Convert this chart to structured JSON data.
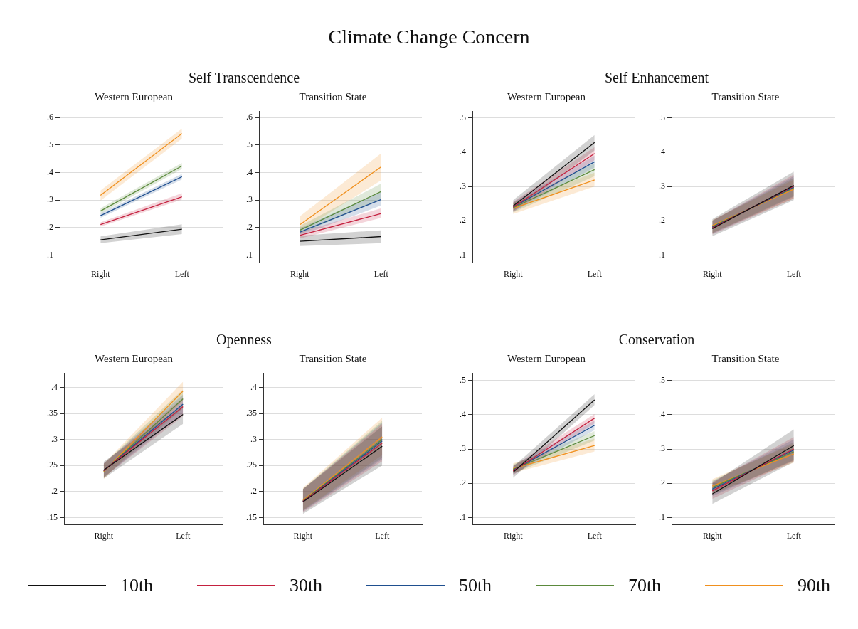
{
  "chart_data": [
    {
      "type": "line",
      "title": "Self Transcendence",
      "subtitle": "Western European",
      "annotations": [
        "Climate Change Concern"
      ],
      "legend": "bottom",
      "grid": "y",
      "categories": [
        "Right",
        "Left"
      ],
      "ylim": [
        0.071,
        0.624
      ],
      "yticks": [
        {
          "value": 0.1,
          "label": ".1"
        },
        {
          "value": 0.2,
          "label": ".2"
        },
        {
          "value": 0.3,
          "label": ".3"
        },
        {
          "value": 0.4,
          "label": ".4"
        },
        {
          "value": 0.5,
          "label": ".5"
        },
        {
          "value": 0.6,
          "label": ".6"
        }
      ],
      "series": [
        {
          "name": "10th",
          "color": "#111111",
          "values": [
            0.155,
            0.194
          ],
          "lower": [
            0.143,
            0.176
          ],
          "upper": [
            0.168,
            0.212
          ]
        },
        {
          "name": "30th",
          "color": "#c4213f",
          "values": [
            0.211,
            0.312
          ],
          "lower": [
            0.203,
            0.302
          ],
          "upper": [
            0.219,
            0.325
          ]
        },
        {
          "name": "50th",
          "color": "#1f4f8f",
          "values": [
            0.243,
            0.385
          ],
          "lower": [
            0.235,
            0.375
          ],
          "upper": [
            0.251,
            0.395
          ]
        },
        {
          "name": "70th",
          "color": "#5b8a3c",
          "values": [
            0.26,
            0.424
          ],
          "lower": [
            0.25,
            0.413
          ],
          "upper": [
            0.27,
            0.435
          ]
        },
        {
          "name": "90th",
          "color": "#f0901e",
          "values": [
            0.317,
            0.542
          ],
          "lower": [
            0.298,
            0.524
          ],
          "upper": [
            0.335,
            0.56
          ]
        }
      ]
    },
    {
      "type": "line",
      "subtitle": "Transition State",
      "grid": "y",
      "categories": [
        "Right",
        "Left"
      ],
      "ylim": [
        0.071,
        0.624
      ],
      "yticks": [
        {
          "value": 0.1,
          "label": ".1"
        },
        {
          "value": 0.2,
          "label": ".2"
        },
        {
          "value": 0.3,
          "label": ".3"
        },
        {
          "value": 0.4,
          "label": ".4"
        },
        {
          "value": 0.5,
          "label": ".5"
        },
        {
          "value": 0.6,
          "label": ".6"
        }
      ],
      "series": [
        {
          "color": "#111111",
          "values": [
            0.15,
            0.167
          ],
          "lower": [
            0.133,
            0.143
          ],
          "upper": [
            0.17,
            0.19
          ]
        },
        {
          "color": "#c4213f",
          "values": [
            0.171,
            0.251
          ],
          "lower": [
            0.16,
            0.235
          ],
          "upper": [
            0.183,
            0.27
          ]
        },
        {
          "color": "#1f4f8f",
          "values": [
            0.183,
            0.302
          ],
          "lower": [
            0.17,
            0.28
          ],
          "upper": [
            0.197,
            0.33
          ]
        },
        {
          "color": "#5b8a3c",
          "values": [
            0.19,
            0.331
          ],
          "lower": [
            0.175,
            0.305
          ],
          "upper": [
            0.205,
            0.36
          ]
        },
        {
          "color": "#f0901e",
          "values": [
            0.21,
            0.421
          ],
          "lower": [
            0.185,
            0.372
          ],
          "upper": [
            0.24,
            0.47
          ]
        }
      ]
    },
    {
      "type": "line",
      "title": "Self Enhancement",
      "subtitle": "Western European",
      "grid": "y",
      "categories": [
        "Right",
        "Left"
      ],
      "ylim": [
        0.077,
        0.52
      ],
      "yticks": [
        {
          "value": 0.1,
          "label": ".1"
        },
        {
          "value": 0.2,
          "label": ".2"
        },
        {
          "value": 0.3,
          "label": ".3"
        },
        {
          "value": 0.4,
          "label": ".4"
        },
        {
          "value": 0.5,
          "label": ".5"
        }
      ],
      "series": [
        {
          "color": "#111111",
          "values": [
            0.243,
            0.428
          ],
          "lower": [
            0.228,
            0.405
          ],
          "upper": [
            0.26,
            0.45
          ]
        },
        {
          "color": "#c4213f",
          "values": [
            0.24,
            0.396
          ],
          "lower": [
            0.226,
            0.377
          ],
          "upper": [
            0.255,
            0.415
          ]
        },
        {
          "color": "#1f4f8f",
          "values": [
            0.24,
            0.372
          ],
          "lower": [
            0.226,
            0.355
          ],
          "upper": [
            0.254,
            0.39
          ]
        },
        {
          "color": "#5b8a3c",
          "values": [
            0.238,
            0.349
          ],
          "lower": [
            0.224,
            0.33
          ],
          "upper": [
            0.252,
            0.368
          ]
        },
        {
          "color": "#f0901e",
          "values": [
            0.236,
            0.319
          ],
          "lower": [
            0.22,
            0.3
          ],
          "upper": [
            0.252,
            0.34
          ]
        }
      ]
    },
    {
      "type": "line",
      "subtitle": "Transition State",
      "grid": "y",
      "categories": [
        "Right",
        "Left"
      ],
      "ylim": [
        0.077,
        0.52
      ],
      "yticks": [
        {
          "value": 0.1,
          "label": ".1"
        },
        {
          "value": 0.2,
          "label": ".2"
        },
        {
          "value": 0.3,
          "label": ".3"
        },
        {
          "value": 0.4,
          "label": ".4"
        },
        {
          "value": 0.5,
          "label": ".5"
        }
      ],
      "series": [
        {
          "color": "#111111",
          "values": [
            0.177,
            0.303
          ],
          "lower": [
            0.155,
            0.26
          ],
          "upper": [
            0.205,
            0.343
          ]
        },
        {
          "color": "#c4213f",
          "values": [
            0.179,
            0.301
          ],
          "lower": [
            0.16,
            0.265
          ],
          "upper": [
            0.2,
            0.335
          ]
        },
        {
          "color": "#1f4f8f",
          "values": [
            0.181,
            0.298
          ],
          "lower": [
            0.162,
            0.27
          ],
          "upper": [
            0.2,
            0.33
          ]
        },
        {
          "color": "#5b8a3c",
          "values": [
            0.183,
            0.296
          ],
          "lower": [
            0.164,
            0.272
          ],
          "upper": [
            0.2,
            0.325
          ]
        },
        {
          "color": "#f0901e",
          "values": [
            0.186,
            0.292
          ],
          "lower": [
            0.165,
            0.265
          ],
          "upper": [
            0.202,
            0.32
          ]
        }
      ]
    },
    {
      "type": "line",
      "title": "Openness",
      "subtitle": "Western European",
      "grid": "y",
      "categories": [
        "Right",
        "Left"
      ],
      "ylim": [
        0.136,
        0.428
      ],
      "yticks": [
        {
          "value": 0.15,
          "label": ".15"
        },
        {
          "value": 0.2,
          "label": ".2"
        },
        {
          "value": 0.25,
          "label": ".25"
        },
        {
          "value": 0.3,
          "label": ".3"
        },
        {
          "value": 0.35,
          "label": ".35"
        },
        {
          "value": 0.4,
          "label": ".4"
        }
      ],
      "series": [
        {
          "color": "#111111",
          "values": [
            0.241,
            0.348
          ],
          "lower": [
            0.225,
            0.33
          ],
          "upper": [
            0.257,
            0.366
          ]
        },
        {
          "color": "#c4213f",
          "values": [
            0.24,
            0.363
          ],
          "lower": [
            0.227,
            0.345
          ],
          "upper": [
            0.254,
            0.38
          ]
        },
        {
          "color": "#1f4f8f",
          "values": [
            0.24,
            0.368
          ],
          "lower": [
            0.227,
            0.35
          ],
          "upper": [
            0.254,
            0.386
          ]
        },
        {
          "color": "#5b8a3c",
          "values": [
            0.239,
            0.378
          ],
          "lower": [
            0.226,
            0.36
          ],
          "upper": [
            0.253,
            0.396
          ]
        },
        {
          "color": "#f0901e",
          "values": [
            0.238,
            0.393
          ],
          "lower": [
            0.224,
            0.375
          ],
          "upper": [
            0.253,
            0.411
          ]
        }
      ]
    },
    {
      "type": "line",
      "subtitle": "Transition State",
      "grid": "y",
      "categories": [
        "Right",
        "Left"
      ],
      "ylim": [
        0.136,
        0.428
      ],
      "yticks": [
        {
          "value": 0.15,
          "label": ".15"
        },
        {
          "value": 0.2,
          "label": ".2"
        },
        {
          "value": 0.25,
          "label": ".25"
        },
        {
          "value": 0.3,
          "label": ".3"
        },
        {
          "value": 0.35,
          "label": ".35"
        },
        {
          "value": 0.4,
          "label": ".4"
        }
      ],
      "series": [
        {
          "color": "#111111",
          "values": [
            0.18,
            0.287
          ],
          "lower": [
            0.157,
            0.25
          ],
          "upper": [
            0.205,
            0.325
          ]
        },
        {
          "color": "#c4213f",
          "values": [
            0.181,
            0.293
          ],
          "lower": [
            0.16,
            0.258
          ],
          "upper": [
            0.204,
            0.33
          ]
        },
        {
          "color": "#1f4f8f",
          "values": [
            0.181,
            0.297
          ],
          "lower": [
            0.162,
            0.262
          ],
          "upper": [
            0.204,
            0.333
          ]
        },
        {
          "color": "#5b8a3c",
          "values": [
            0.182,
            0.3
          ],
          "lower": [
            0.163,
            0.265
          ],
          "upper": [
            0.205,
            0.336
          ]
        },
        {
          "color": "#f0901e",
          "values": [
            0.183,
            0.305
          ],
          "lower": [
            0.164,
            0.27
          ],
          "upper": [
            0.207,
            0.342
          ]
        }
      ]
    },
    {
      "type": "line",
      "title": "Conservation",
      "subtitle": "Western European",
      "grid": "y",
      "categories": [
        "Right",
        "Left"
      ],
      "ylim": [
        0.079,
        0.522
      ],
      "yticks": [
        {
          "value": 0.1,
          "label": ".1"
        },
        {
          "value": 0.2,
          "label": ".2"
        },
        {
          "value": 0.3,
          "label": ".3"
        },
        {
          "value": 0.4,
          "label": ".4"
        },
        {
          "value": 0.5,
          "label": ".5"
        }
      ],
      "series": [
        {
          "color": "#111111",
          "values": [
            0.232,
            0.443
          ],
          "lower": [
            0.216,
            0.428
          ],
          "upper": [
            0.248,
            0.46
          ]
        },
        {
          "color": "#c4213f",
          "values": [
            0.236,
            0.39
          ],
          "lower": [
            0.224,
            0.375
          ],
          "upper": [
            0.25,
            0.402
          ]
        },
        {
          "color": "#1f4f8f",
          "values": [
            0.238,
            0.369
          ],
          "lower": [
            0.226,
            0.355
          ],
          "upper": [
            0.252,
            0.383
          ]
        },
        {
          "color": "#5b8a3c",
          "values": [
            0.241,
            0.339
          ],
          "lower": [
            0.228,
            0.325
          ],
          "upper": [
            0.255,
            0.352
          ]
        },
        {
          "color": "#f0901e",
          "values": [
            0.243,
            0.31
          ],
          "lower": [
            0.23,
            0.293
          ],
          "upper": [
            0.258,
            0.33
          ]
        }
      ]
    },
    {
      "type": "line",
      "subtitle": "Transition State",
      "grid": "y",
      "categories": [
        "Right",
        "Left"
      ],
      "ylim": [
        0.079,
        0.522
      ],
      "yticks": [
        {
          "value": 0.1,
          "label": ".1"
        },
        {
          "value": 0.2,
          "label": ".2"
        },
        {
          "value": 0.3,
          "label": ".3"
        },
        {
          "value": 0.4,
          "label": ".4"
        },
        {
          "value": 0.5,
          "label": ".5"
        }
      ],
      "series": [
        {
          "color": "#111111",
          "values": [
            0.169,
            0.31
          ],
          "lower": [
            0.14,
            0.262
          ],
          "upper": [
            0.2,
            0.357
          ]
        },
        {
          "color": "#c4213f",
          "values": [
            0.178,
            0.3
          ],
          "lower": [
            0.155,
            0.265
          ],
          "upper": [
            0.203,
            0.335
          ]
        },
        {
          "color": "#1f4f8f",
          "values": [
            0.183,
            0.297
          ],
          "lower": [
            0.162,
            0.268
          ],
          "upper": [
            0.205,
            0.328
          ]
        },
        {
          "color": "#5b8a3c",
          "values": [
            0.188,
            0.292
          ],
          "lower": [
            0.167,
            0.266
          ],
          "upper": [
            0.208,
            0.32
          ]
        },
        {
          "color": "#f0901e",
          "values": [
            0.192,
            0.286
          ],
          "lower": [
            0.17,
            0.26
          ],
          "upper": [
            0.212,
            0.315
          ]
        }
      ]
    }
  ]
}
